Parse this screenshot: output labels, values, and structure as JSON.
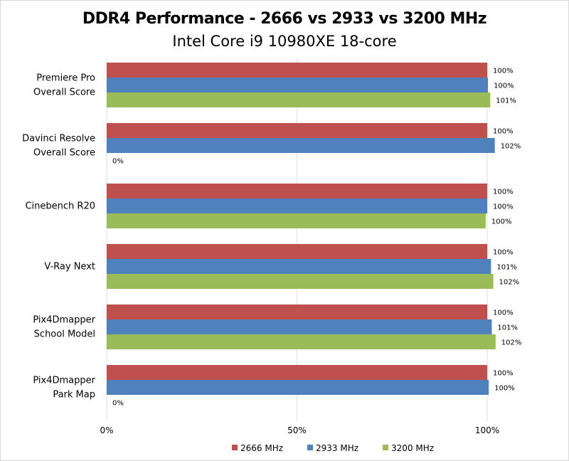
{
  "chart_data": {
    "type": "bar",
    "orientation": "horizontal",
    "title": "DDR4 Performance - 2666 vs 2933 vs 3200 MHz",
    "subtitle": "Intel Core i9 10980XE 18-core",
    "xlabel": "",
    "ylabel": "",
    "xlim": [
      0,
      100
    ],
    "x_ticks": [
      "0%",
      "50%",
      "100%"
    ],
    "grid": true,
    "legend_position": "bottom",
    "categories": [
      [
        "Premiere Pro",
        "Overall Score"
      ],
      [
        "Davinci Resolve",
        "Overall Score"
      ],
      [
        "Cinebench R20"
      ],
      [
        "V-Ray Next"
      ],
      [
        "Pix4Dmapper",
        "School Model"
      ],
      [
        "Pix4Dmapper",
        "Park Map"
      ]
    ],
    "series": [
      {
        "name": "2666 MHz",
        "color": "#c0504d",
        "values": [
          100,
          100,
          100,
          100,
          100,
          100
        ],
        "labels": [
          "100%",
          "100%",
          "100%",
          "100%",
          "100%",
          "100%"
        ]
      },
      {
        "name": "2933 MHz",
        "color": "#4f81bd",
        "values": [
          100.2,
          102,
          100,
          101,
          101.2,
          100.4
        ],
        "labels": [
          "100%",
          "102%",
          "100%",
          "101%",
          "101%",
          "100%"
        ]
      },
      {
        "name": "3200 MHz",
        "color": "#9bbb59",
        "values": [
          100.8,
          0,
          99.6,
          101.6,
          102.2,
          0
        ],
        "labels": [
          "101%",
          "0%",
          "100%",
          "102%",
          "102%",
          "0%"
        ]
      }
    ]
  }
}
